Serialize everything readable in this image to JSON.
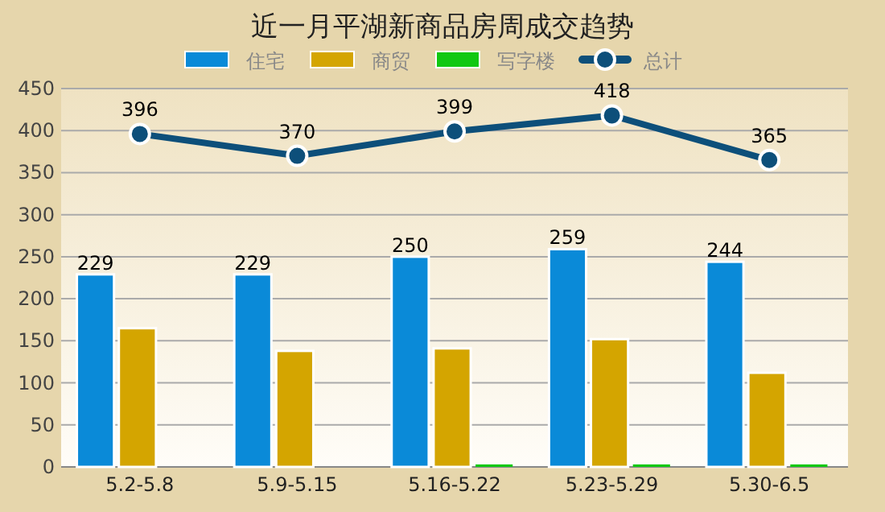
{
  "chart_data": {
    "type": "bar",
    "title": "近一月平湖新商品房周成交趋势",
    "categories": [
      "5.2-5.8",
      "5.9-5.15",
      "5.16-5.22",
      "5.23-5.29",
      "5.30-6.5"
    ],
    "series": [
      {
        "name": "住宅",
        "color": "#0a8ad8",
        "values": [
          229,
          229,
          250,
          259,
          244
        ],
        "value_labels": [
          "229",
          "229",
          "250",
          "259",
          "244"
        ]
      },
      {
        "name": "商贸",
        "color": "#d4a500",
        "values": [
          165,
          138,
          141,
          152,
          112
        ]
      },
      {
        "name": "写字楼",
        "color": "#12c812",
        "values": [
          0,
          0,
          3,
          3,
          3
        ]
      },
      {
        "name": "总计",
        "type": "line",
        "color": "#0d4f7a",
        "values": [
          396,
          370,
          399,
          418,
          365
        ],
        "value_labels": [
          "396",
          "370",
          "399",
          "418",
          "365"
        ]
      }
    ],
    "ylim": [
      0,
      450
    ],
    "yticks": [
      0,
      50,
      100,
      150,
      200,
      250,
      300,
      350,
      400,
      450
    ],
    "grid": "y",
    "legend": "top",
    "marker": "circle",
    "line_style": "solid"
  }
}
